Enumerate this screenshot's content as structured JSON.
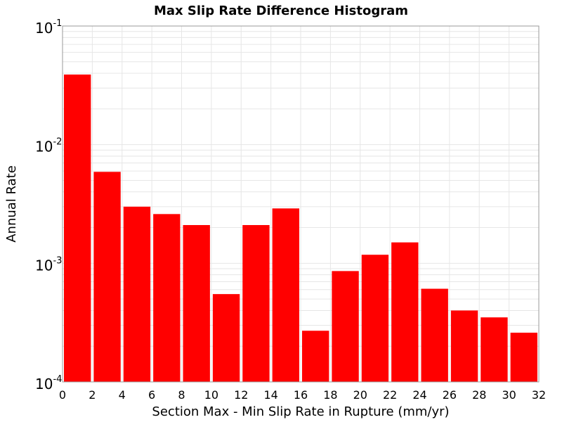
{
  "chart_data": {
    "type": "bar",
    "title": "Max Slip Rate Difference Histogram",
    "xlabel": "Section Max - Min Slip Rate in Rupture (mm/yr)",
    "ylabel": "Annual Rate",
    "bin_width": 2,
    "x": [
      1,
      3,
      5,
      7,
      9,
      11,
      13,
      15,
      17,
      19,
      21,
      23,
      25,
      27,
      29,
      31
    ],
    "values": [
      0.039,
      0.0059,
      0.003,
      0.0026,
      0.0021,
      0.00055,
      0.0021,
      0.0029,
      0.00027,
      0.00086,
      0.00118,
      0.0015,
      0.00061,
      0.0004,
      0.00035,
      0.00026
    ],
    "xlim": [
      0,
      32
    ],
    "ylim": [
      0.0001,
      0.1
    ],
    "yscale": "log",
    "x_ticks": [
      "0",
      "2",
      "4",
      "6",
      "8",
      "10",
      "12",
      "14",
      "16",
      "18",
      "20",
      "22",
      "24",
      "26",
      "28",
      "30",
      "32"
    ],
    "y_ticks": [
      {
        "base": "10",
        "exp": "-4"
      },
      {
        "base": "10",
        "exp": "-3"
      },
      {
        "base": "10",
        "exp": "-2"
      },
      {
        "base": "10",
        "exp": "-1"
      }
    ],
    "grid": true,
    "bar_color": "#ff0000",
    "grid_color": "#e6e6e6"
  }
}
